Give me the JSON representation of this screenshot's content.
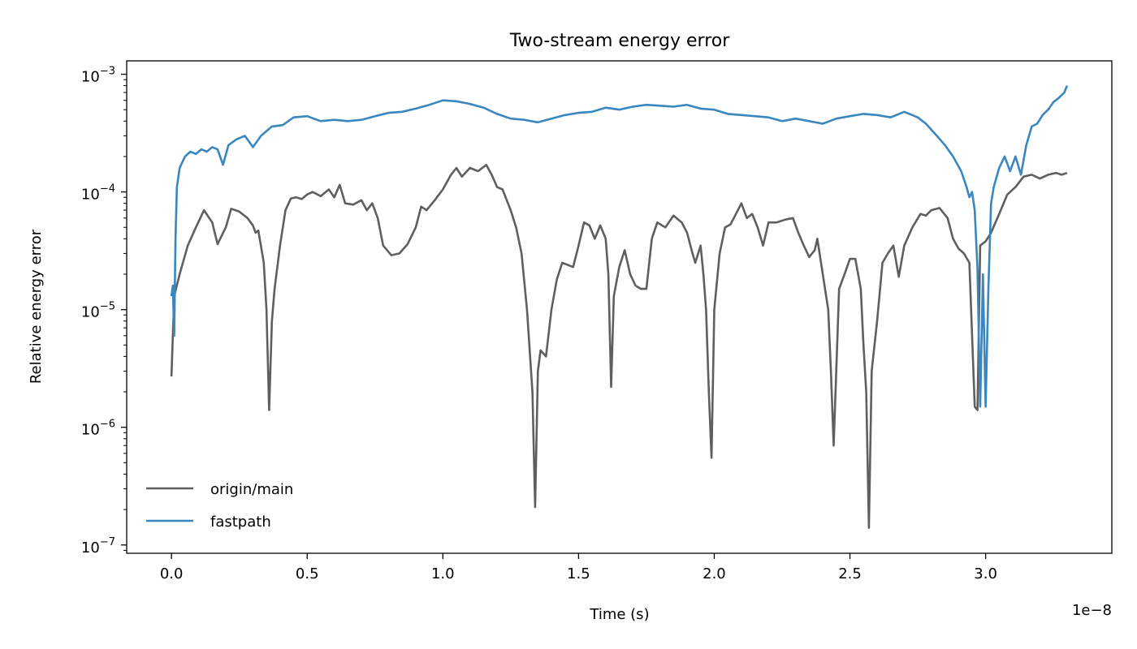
{
  "chart_data": {
    "type": "line",
    "title": "Two-stream energy error",
    "xlabel": "Time (s)",
    "ylabel": "Relative energy error",
    "x_multiplier_label": "1e−8",
    "y_scale": "log",
    "xlim": [
      -0.165,
      3.465
    ],
    "ylim": [
      8.5e-08,
      0.0013
    ],
    "x_ticks": [
      0.0,
      0.5,
      1.0,
      1.5,
      2.0,
      2.5,
      3.0
    ],
    "x_tick_labels": [
      "0.0",
      "0.5",
      "1.0",
      "1.5",
      "2.0",
      "2.5",
      "3.0"
    ],
    "y_ticks": [
      {
        "value": 0.001,
        "base": "10",
        "exp": "−3"
      },
      {
        "value": 0.0001,
        "base": "10",
        "exp": "−4"
      },
      {
        "value": 1e-05,
        "base": "10",
        "exp": "−5"
      },
      {
        "value": 1e-06,
        "base": "10",
        "exp": "−6"
      },
      {
        "value": 1e-07,
        "base": "10",
        "exp": "−7"
      }
    ],
    "grid": false,
    "legend_position": "lower-left",
    "series": [
      {
        "name": "origin/main",
        "color": "#5f5f5f",
        "points": [
          [
            0.0,
            2.7e-06
          ],
          [
            0.01,
            1.3e-05
          ],
          [
            0.03,
            2e-05
          ],
          [
            0.06,
            3.5e-05
          ],
          [
            0.09,
            5e-05
          ],
          [
            0.12,
            7e-05
          ],
          [
            0.15,
            5.5e-05
          ],
          [
            0.17,
            3.6e-05
          ],
          [
            0.2,
            5e-05
          ],
          [
            0.22,
            7.2e-05
          ],
          [
            0.25,
            6.8e-05
          ],
          [
            0.28,
            6e-05
          ],
          [
            0.3,
            5.2e-05
          ],
          [
            0.31,
            4.5e-05
          ],
          [
            0.32,
            4.7e-05
          ],
          [
            0.34,
            2.5e-05
          ],
          [
            0.35,
            1e-05
          ],
          [
            0.36,
            1.4e-06
          ],
          [
            0.37,
            8e-06
          ],
          [
            0.38,
            1.5e-05
          ],
          [
            0.4,
            3.5e-05
          ],
          [
            0.42,
            7e-05
          ],
          [
            0.44,
            8.8e-05
          ],
          [
            0.46,
            9e-05
          ],
          [
            0.48,
            8.7e-05
          ],
          [
            0.5,
            9.5e-05
          ],
          [
            0.52,
            0.0001
          ],
          [
            0.55,
            9.2e-05
          ],
          [
            0.58,
            0.000105
          ],
          [
            0.6,
            9e-05
          ],
          [
            0.62,
            0.000115
          ],
          [
            0.64,
            8e-05
          ],
          [
            0.67,
            7.8e-05
          ],
          [
            0.7,
            8.5e-05
          ],
          [
            0.72,
            7e-05
          ],
          [
            0.74,
            8e-05
          ],
          [
            0.76,
            6e-05
          ],
          [
            0.78,
            3.5e-05
          ],
          [
            0.81,
            2.9e-05
          ],
          [
            0.84,
            3e-05
          ],
          [
            0.87,
            3.6e-05
          ],
          [
            0.9,
            5e-05
          ],
          [
            0.92,
            7.5e-05
          ],
          [
            0.94,
            7e-05
          ],
          [
            0.97,
            8.5e-05
          ],
          [
            1.0,
            0.000105
          ],
          [
            1.03,
            0.00014
          ],
          [
            1.05,
            0.00016
          ],
          [
            1.07,
            0.000135
          ],
          [
            1.1,
            0.00016
          ],
          [
            1.13,
            0.00015
          ],
          [
            1.16,
            0.00017
          ],
          [
            1.18,
            0.00014
          ],
          [
            1.2,
            0.00011
          ],
          [
            1.22,
            0.000105
          ],
          [
            1.25,
            7e-05
          ],
          [
            1.27,
            5e-05
          ],
          [
            1.29,
            3e-05
          ],
          [
            1.31,
            1e-05
          ],
          [
            1.33,
            2e-06
          ],
          [
            1.34,
            2.1e-07
          ],
          [
            1.35,
            3e-06
          ],
          [
            1.36,
            4.5e-06
          ],
          [
            1.38,
            4e-06
          ],
          [
            1.4,
            1e-05
          ],
          [
            1.42,
            1.8e-05
          ],
          [
            1.44,
            2.5e-05
          ],
          [
            1.46,
            2.4e-05
          ],
          [
            1.48,
            2.3e-05
          ],
          [
            1.5,
            3.5e-05
          ],
          [
            1.52,
            5.5e-05
          ],
          [
            1.54,
            5.2e-05
          ],
          [
            1.56,
            4e-05
          ],
          [
            1.58,
            5.2e-05
          ],
          [
            1.6,
            4e-05
          ],
          [
            1.61,
            2e-05
          ],
          [
            1.62,
            2.2e-06
          ],
          [
            1.63,
            1.3e-05
          ],
          [
            1.65,
            2.3e-05
          ],
          [
            1.67,
            3.2e-05
          ],
          [
            1.69,
            2e-05
          ],
          [
            1.71,
            1.6e-05
          ],
          [
            1.73,
            1.5e-05
          ],
          [
            1.75,
            1.5e-05
          ],
          [
            1.77,
            4e-05
          ],
          [
            1.79,
            5.5e-05
          ],
          [
            1.82,
            5e-05
          ],
          [
            1.85,
            6.3e-05
          ],
          [
            1.88,
            5.5e-05
          ],
          [
            1.9,
            4.5e-05
          ],
          [
            1.92,
            3e-05
          ],
          [
            1.93,
            2.5e-05
          ],
          [
            1.95,
            3.5e-05
          ],
          [
            1.96,
            2e-05
          ],
          [
            1.97,
            1e-05
          ],
          [
            1.98,
            2e-06
          ],
          [
            1.99,
            5.5e-07
          ],
          [
            2.0,
            1e-05
          ],
          [
            2.02,
            3e-05
          ],
          [
            2.04,
            5e-05
          ],
          [
            2.06,
            5.3e-05
          ],
          [
            2.08,
            6.5e-05
          ],
          [
            2.1,
            8e-05
          ],
          [
            2.12,
            6e-05
          ],
          [
            2.14,
            6.5e-05
          ],
          [
            2.16,
            5e-05
          ],
          [
            2.18,
            3.5e-05
          ],
          [
            2.2,
            5.5e-05
          ],
          [
            2.23,
            5.5e-05
          ],
          [
            2.26,
            5.8e-05
          ],
          [
            2.29,
            6e-05
          ],
          [
            2.31,
            4.5e-05
          ],
          [
            2.33,
            3.5e-05
          ],
          [
            2.35,
            2.8e-05
          ],
          [
            2.37,
            3.2e-05
          ],
          [
            2.38,
            4e-05
          ],
          [
            2.4,
            2e-05
          ],
          [
            2.42,
            1e-05
          ],
          [
            2.43,
            3e-06
          ],
          [
            2.44,
            7e-07
          ],
          [
            2.46,
            1.5e-05
          ],
          [
            2.48,
            2e-05
          ],
          [
            2.5,
            2.7e-05
          ],
          [
            2.52,
            2.7e-05
          ],
          [
            2.54,
            1.5e-05
          ],
          [
            2.55,
            5e-06
          ],
          [
            2.56,
            2e-06
          ],
          [
            2.57,
            1.4e-07
          ],
          [
            2.58,
            3e-06
          ],
          [
            2.6,
            8e-06
          ],
          [
            2.62,
            2.5e-05
          ],
          [
            2.64,
            3e-05
          ],
          [
            2.66,
            3.5e-05
          ],
          [
            2.68,
            1.9e-05
          ],
          [
            2.7,
            3.5e-05
          ],
          [
            2.73,
            5e-05
          ],
          [
            2.76,
            6.5e-05
          ],
          [
            2.78,
            6.3e-05
          ],
          [
            2.8,
            7e-05
          ],
          [
            2.83,
            7.3e-05
          ],
          [
            2.86,
            6e-05
          ],
          [
            2.88,
            4e-05
          ],
          [
            2.9,
            3.3e-05
          ],
          [
            2.92,
            3e-05
          ],
          [
            2.94,
            2.5e-05
          ],
          [
            2.96,
            1.5e-06
          ],
          [
            2.97,
            1.4e-06
          ],
          [
            2.98,
            3.5e-05
          ],
          [
            3.0,
            3.8e-05
          ],
          [
            3.02,
            4.5e-05
          ],
          [
            3.05,
            6.5e-05
          ],
          [
            3.08,
            9.5e-05
          ],
          [
            3.11,
            0.00011
          ],
          [
            3.14,
            0.000135
          ],
          [
            3.17,
            0.00014
          ],
          [
            3.2,
            0.00013
          ],
          [
            3.23,
            0.00014
          ],
          [
            3.26,
            0.000145
          ],
          [
            3.28,
            0.00014
          ],
          [
            3.3,
            0.000145
          ]
        ]
      },
      {
        "name": "fastpath",
        "color": "#3a87c0",
        "points": [
          [
            0.0,
            1.3e-05
          ],
          [
            0.005,
            1.6e-05
          ],
          [
            0.01,
            6e-06
          ],
          [
            0.015,
            4e-05
          ],
          [
            0.02,
            0.00011
          ],
          [
            0.03,
            0.00016
          ],
          [
            0.05,
            0.0002
          ],
          [
            0.07,
            0.00022
          ],
          [
            0.09,
            0.00021
          ],
          [
            0.11,
            0.00023
          ],
          [
            0.13,
            0.00022
          ],
          [
            0.15,
            0.00024
          ],
          [
            0.17,
            0.00023
          ],
          [
            0.19,
            0.00017
          ],
          [
            0.21,
            0.00025
          ],
          [
            0.24,
            0.00028
          ],
          [
            0.27,
            0.0003
          ],
          [
            0.29,
            0.00026
          ],
          [
            0.3,
            0.00024
          ],
          [
            0.33,
            0.0003
          ],
          [
            0.37,
            0.00036
          ],
          [
            0.41,
            0.00037
          ],
          [
            0.45,
            0.00043
          ],
          [
            0.5,
            0.00044
          ],
          [
            0.55,
            0.0004
          ],
          [
            0.6,
            0.00041
          ],
          [
            0.65,
            0.0004
          ],
          [
            0.7,
            0.00041
          ],
          [
            0.75,
            0.00044
          ],
          [
            0.8,
            0.00047
          ],
          [
            0.85,
            0.00048
          ],
          [
            0.9,
            0.00051
          ],
          [
            0.95,
            0.00055
          ],
          [
            1.0,
            0.0006
          ],
          [
            1.05,
            0.00059
          ],
          [
            1.1,
            0.00056
          ],
          [
            1.15,
            0.00052
          ],
          [
            1.2,
            0.00046
          ],
          [
            1.25,
            0.00042
          ],
          [
            1.3,
            0.00041
          ],
          [
            1.35,
            0.00039
          ],
          [
            1.4,
            0.00042
          ],
          [
            1.45,
            0.00045
          ],
          [
            1.5,
            0.00047
          ],
          [
            1.55,
            0.00048
          ],
          [
            1.6,
            0.00052
          ],
          [
            1.65,
            0.0005
          ],
          [
            1.7,
            0.00053
          ],
          [
            1.75,
            0.00055
          ],
          [
            1.8,
            0.00054
          ],
          [
            1.85,
            0.00053
          ],
          [
            1.9,
            0.00055
          ],
          [
            1.95,
            0.00051
          ],
          [
            2.0,
            0.0005
          ],
          [
            2.05,
            0.00046
          ],
          [
            2.1,
            0.00045
          ],
          [
            2.15,
            0.00044
          ],
          [
            2.2,
            0.00043
          ],
          [
            2.25,
            0.0004
          ],
          [
            2.3,
            0.00042
          ],
          [
            2.35,
            0.0004
          ],
          [
            2.4,
            0.00038
          ],
          [
            2.45,
            0.00042
          ],
          [
            2.5,
            0.00044
          ],
          [
            2.55,
            0.00046
          ],
          [
            2.6,
            0.00045
          ],
          [
            2.65,
            0.00043
          ],
          [
            2.7,
            0.00048
          ],
          [
            2.75,
            0.00043
          ],
          [
            2.78,
            0.00038
          ],
          [
            2.82,
            0.0003
          ],
          [
            2.85,
            0.00025
          ],
          [
            2.88,
            0.0002
          ],
          [
            2.91,
            0.00015
          ],
          [
            2.93,
            0.00011
          ],
          [
            2.94,
            9e-05
          ],
          [
            2.95,
            0.0001
          ],
          [
            2.96,
            7e-05
          ],
          [
            2.97,
            2.2e-05
          ],
          [
            2.98,
            1.5e-06
          ],
          [
            2.99,
            2e-05
          ],
          [
            3.0,
            1.5e-06
          ],
          [
            3.01,
            1.5e-05
          ],
          [
            3.02,
            8e-05
          ],
          [
            3.03,
            0.00011
          ],
          [
            3.05,
            0.00016
          ],
          [
            3.07,
            0.0002
          ],
          [
            3.09,
            0.00015
          ],
          [
            3.11,
            0.0002
          ],
          [
            3.13,
            0.00014
          ],
          [
            3.15,
            0.00025
          ],
          [
            3.17,
            0.00036
          ],
          [
            3.19,
            0.00038
          ],
          [
            3.21,
            0.00045
          ],
          [
            3.23,
            0.0005
          ],
          [
            3.25,
            0.00058
          ],
          [
            3.27,
            0.00063
          ],
          [
            3.29,
            0.0007
          ],
          [
            3.3,
            0.0008
          ]
        ]
      }
    ]
  }
}
